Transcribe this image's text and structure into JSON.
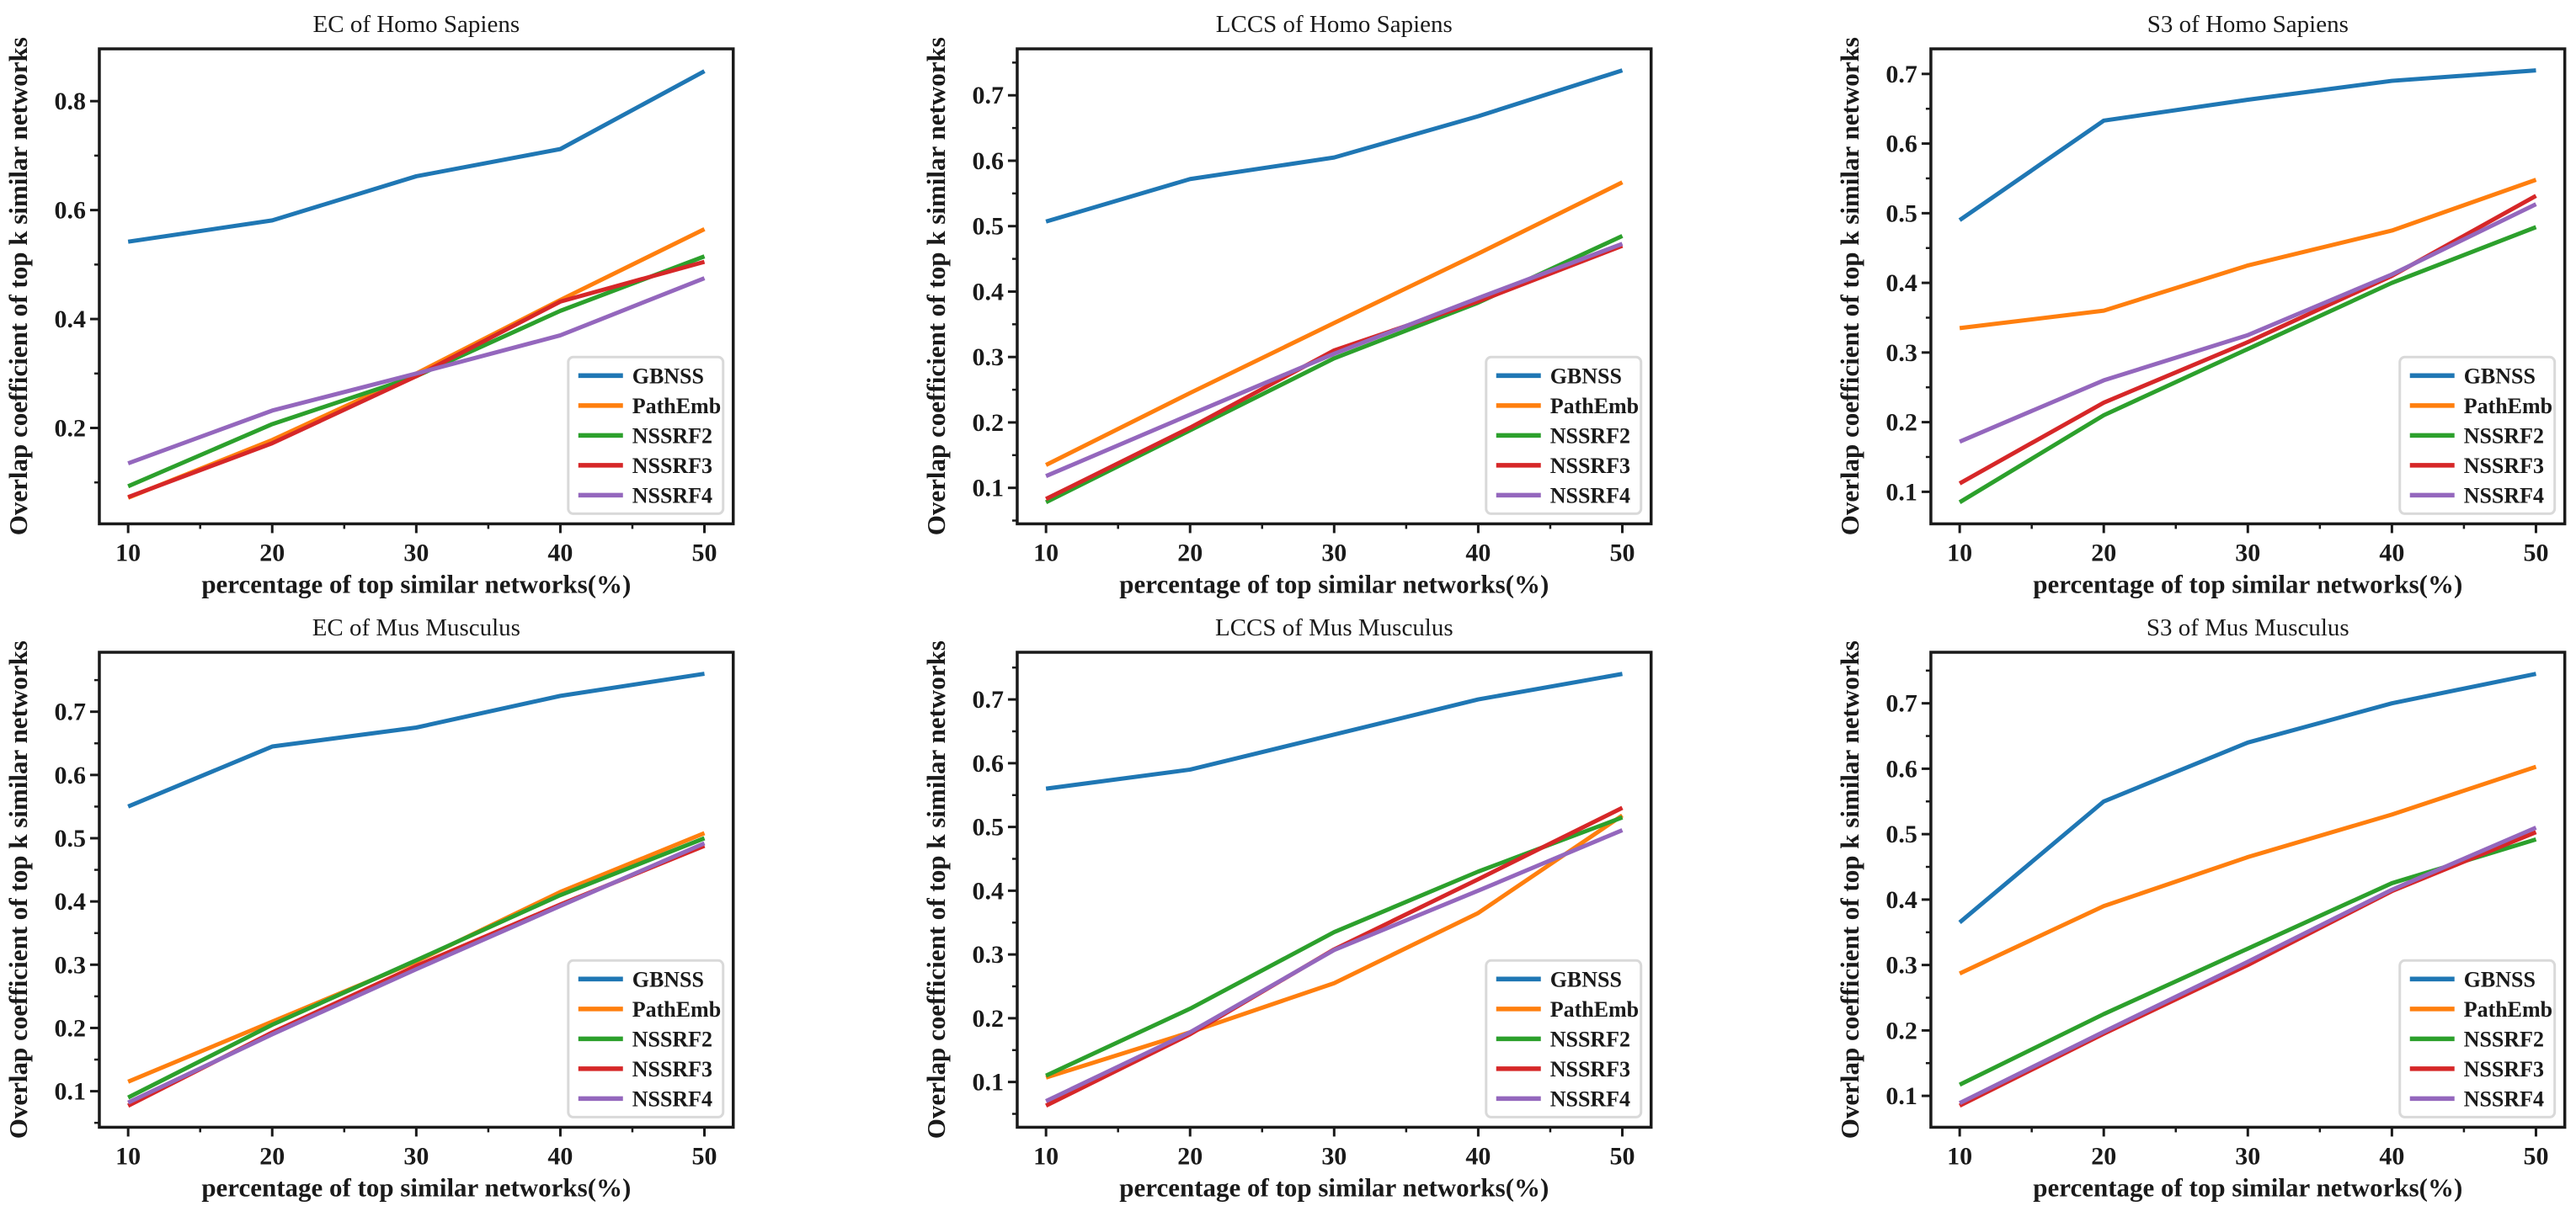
{
  "figure": {
    "background": "#ffffff",
    "text_color": "#1a1a1a",
    "axis_color": "#1a1a1a",
    "legend_border_color": "#d9d9d9",
    "legend_background": "#ffffff",
    "series_colors": {
      "GBNSS": "#1f77b4",
      "PathEmb": "#ff7f0e",
      "NSSRF2": "#2ca02c",
      "NSSRF3": "#d62728",
      "NSSRF4": "#9467bd"
    }
  },
  "chart_data": [
    {
      "id": "ec-of-homo-sapiens",
      "type": "line",
      "title": "EC of Homo Sapiens",
      "xlabel": "percentage of top similar networks(%)",
      "ylabel": "Overlap coefficient of top k similar networks",
      "x": [
        10,
        20,
        30,
        40,
        50
      ],
      "xticks": [
        10,
        20,
        30,
        40,
        50
      ],
      "xlim": [
        8,
        52
      ],
      "yticks": [
        0.2,
        0.4,
        0.6,
        0.8
      ],
      "ylim": [
        0.024,
        0.896
      ],
      "grid": false,
      "legend_position": "lower right",
      "series": [
        {
          "name": "GBNSS",
          "color": "#1f77b4",
          "values": [
            0.542,
            0.581,
            0.662,
            0.712,
            0.855
          ]
        },
        {
          "name": "PathEmb",
          "color": "#ff7f0e",
          "values": [
            0.072,
            0.178,
            0.3,
            0.435,
            0.565
          ]
        },
        {
          "name": "NSSRF2",
          "color": "#2ca02c",
          "values": [
            0.093,
            0.207,
            0.295,
            0.415,
            0.515
          ]
        },
        {
          "name": "NSSRF3",
          "color": "#d62728",
          "values": [
            0.073,
            0.172,
            0.295,
            0.432,
            0.505
          ]
        },
        {
          "name": "NSSRF4",
          "color": "#9467bd",
          "values": [
            0.135,
            0.232,
            0.3,
            0.37,
            0.475
          ]
        }
      ]
    },
    {
      "id": "lccs-of-homo-sapiens",
      "type": "line",
      "title": "LCCS of Homo Sapiens",
      "xlabel": "percentage of top similar networks(%)",
      "ylabel": "Overlap coefficient of top k similar networks",
      "x": [
        10,
        20,
        30,
        40,
        50
      ],
      "xticks": [
        10,
        20,
        30,
        40,
        50
      ],
      "xlim": [
        8,
        52
      ],
      "yticks": [
        0.1,
        0.2,
        0.3,
        0.4,
        0.5,
        0.6,
        0.7
      ],
      "ylim": [
        0.045,
        0.771
      ],
      "grid": false,
      "legend_position": "lower right",
      "series": [
        {
          "name": "GBNSS",
          "color": "#1f77b4",
          "values": [
            0.507,
            0.572,
            0.605,
            0.668,
            0.738
          ]
        },
        {
          "name": "PathEmb",
          "color": "#ff7f0e",
          "values": [
            0.135,
            0.245,
            0.352,
            0.458,
            0.567
          ]
        },
        {
          "name": "NSSRF2",
          "color": "#2ca02c",
          "values": [
            0.078,
            0.188,
            0.298,
            0.383,
            0.485
          ]
        },
        {
          "name": "NSSRF3",
          "color": "#d62728",
          "values": [
            0.083,
            0.192,
            0.31,
            0.385,
            0.47
          ]
        },
        {
          "name": "NSSRF4",
          "color": "#9467bd",
          "values": [
            0.118,
            0.212,
            0.305,
            0.39,
            0.473
          ]
        }
      ]
    },
    {
      "id": "s3-of-homo-sapiens",
      "type": "line",
      "title": "S3 of Homo Sapiens",
      "xlabel": "percentage of top similar networks(%)",
      "ylabel": "Overlap coefficient of top k similar networks",
      "x": [
        10,
        20,
        30,
        40,
        50
      ],
      "xticks": [
        10,
        20,
        30,
        40,
        50
      ],
      "xlim": [
        8,
        52
      ],
      "yticks": [
        0.1,
        0.2,
        0.3,
        0.4,
        0.5,
        0.6,
        0.7
      ],
      "ylim": [
        0.054,
        0.736
      ],
      "grid": false,
      "legend_position": "lower right",
      "series": [
        {
          "name": "GBNSS",
          "color": "#1f77b4",
          "values": [
            0.49,
            0.633,
            0.663,
            0.69,
            0.705
          ]
        },
        {
          "name": "PathEmb",
          "color": "#ff7f0e",
          "values": [
            0.335,
            0.36,
            0.425,
            0.475,
            0.548
          ]
        },
        {
          "name": "NSSRF2",
          "color": "#2ca02c",
          "values": [
            0.085,
            0.21,
            0.305,
            0.4,
            0.48
          ]
        },
        {
          "name": "NSSRF3",
          "color": "#d62728",
          "values": [
            0.112,
            0.228,
            0.315,
            0.41,
            0.525
          ]
        },
        {
          "name": "NSSRF4",
          "color": "#9467bd",
          "values": [
            0.172,
            0.26,
            0.325,
            0.412,
            0.513
          ]
        }
      ]
    },
    {
      "id": "ec-of-mus-musculus",
      "type": "line",
      "title": "EC of Mus Musculus",
      "xlabel": "percentage of top similar networks(%)",
      "ylabel": "Overlap coefficient of top k similar networks",
      "x": [
        10,
        20,
        30,
        40,
        50
      ],
      "xticks": [
        10,
        20,
        30,
        40,
        50
      ],
      "xlim": [
        8,
        52
      ],
      "yticks": [
        0.1,
        0.2,
        0.3,
        0.4,
        0.5,
        0.6,
        0.7
      ],
      "ylim": [
        0.043,
        0.794
      ],
      "grid": false,
      "legend_position": "lower right",
      "series": [
        {
          "name": "GBNSS",
          "color": "#1f77b4",
          "values": [
            0.55,
            0.645,
            0.675,
            0.725,
            0.76
          ]
        },
        {
          "name": "PathEmb",
          "color": "#ff7f0e",
          "values": [
            0.115,
            0.21,
            0.305,
            0.415,
            0.508
          ]
        },
        {
          "name": "NSSRF2",
          "color": "#2ca02c",
          "values": [
            0.09,
            0.205,
            0.307,
            0.41,
            0.5
          ]
        },
        {
          "name": "NSSRF3",
          "color": "#d62728",
          "values": [
            0.077,
            0.193,
            0.298,
            0.395,
            0.488
          ]
        },
        {
          "name": "NSSRF4",
          "color": "#9467bd",
          "values": [
            0.082,
            0.19,
            0.293,
            0.393,
            0.492
          ]
        }
      ]
    },
    {
      "id": "lccs-of-mus-musculus",
      "type": "line",
      "title": "LCCS of Mus Musculus",
      "xlabel": "percentage of top similar networks(%)",
      "ylabel": "Overlap coefficient of top k similar networks",
      "x": [
        10,
        20,
        30,
        40,
        50
      ],
      "xticks": [
        10,
        20,
        30,
        40,
        50
      ],
      "xlim": [
        8,
        52
      ],
      "yticks": [
        0.1,
        0.2,
        0.3,
        0.4,
        0.5,
        0.6,
        0.7
      ],
      "ylim": [
        0.029,
        0.774
      ],
      "grid": false,
      "legend_position": "lower right",
      "series": [
        {
          "name": "GBNSS",
          "color": "#1f77b4",
          "values": [
            0.56,
            0.59,
            0.645,
            0.7,
            0.74
          ]
        },
        {
          "name": "PathEmb",
          "color": "#ff7f0e",
          "values": [
            0.107,
            0.178,
            0.255,
            0.365,
            0.518
          ]
        },
        {
          "name": "NSSRF2",
          "color": "#2ca02c",
          "values": [
            0.11,
            0.215,
            0.335,
            0.43,
            0.515
          ]
        },
        {
          "name": "NSSRF3",
          "color": "#d62728",
          "values": [
            0.063,
            0.175,
            0.308,
            0.418,
            0.53
          ]
        },
        {
          "name": "NSSRF4",
          "color": "#9467bd",
          "values": [
            0.07,
            0.178,
            0.307,
            0.4,
            0.495
          ]
        }
      ]
    },
    {
      "id": "s3-of-mus-musculus",
      "type": "line",
      "title": "S3 of Mus Musculus",
      "xlabel": "percentage of top similar networks(%)",
      "ylabel": "Overlap coefficient of top k similar networks",
      "x": [
        10,
        20,
        30,
        40,
        50
      ],
      "xticks": [
        10,
        20,
        30,
        40,
        50
      ],
      "xlim": [
        8,
        52
      ],
      "yticks": [
        0.1,
        0.2,
        0.3,
        0.4,
        0.5,
        0.6,
        0.7
      ],
      "ylim": [
        0.052,
        0.778
      ],
      "grid": false,
      "legend_position": "lower right",
      "series": [
        {
          "name": "GBNSS",
          "color": "#1f77b4",
          "values": [
            0.365,
            0.55,
            0.64,
            0.7,
            0.745
          ]
        },
        {
          "name": "PathEmb",
          "color": "#ff7f0e",
          "values": [
            0.287,
            0.39,
            0.465,
            0.53,
            0.603
          ]
        },
        {
          "name": "NSSRF2",
          "color": "#2ca02c",
          "values": [
            0.117,
            0.225,
            0.325,
            0.425,
            0.492
          ]
        },
        {
          "name": "NSSRF3",
          "color": "#d62728",
          "values": [
            0.085,
            0.195,
            0.3,
            0.413,
            0.503
          ]
        },
        {
          "name": "NSSRF4",
          "color": "#9467bd",
          "values": [
            0.089,
            0.198,
            0.305,
            0.415,
            0.51
          ]
        }
      ]
    }
  ]
}
